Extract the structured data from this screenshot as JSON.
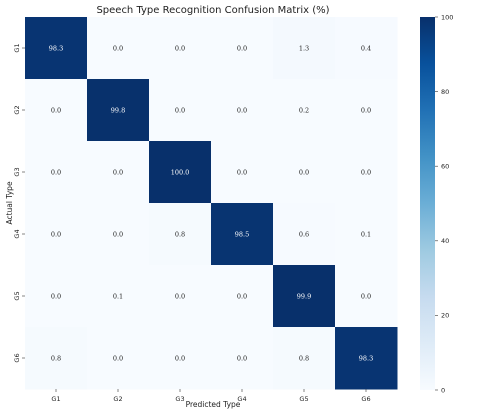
{
  "chart_data": {
    "type": "heatmap",
    "title": "Speech Type Recognition Confusion Matrix (%)",
    "xlabel": "Predicted Type",
    "ylabel": "Actual Type",
    "x_categories": [
      "G1",
      "G2",
      "G3",
      "G4",
      "G5",
      "G6"
    ],
    "y_categories": [
      "G1",
      "G2",
      "G3",
      "G4",
      "G5",
      "G6"
    ],
    "values": [
      [
        98.3,
        0.0,
        0.0,
        0.0,
        1.3,
        0.4
      ],
      [
        0.0,
        99.8,
        0.0,
        0.0,
        0.2,
        0.0
      ],
      [
        0.0,
        0.0,
        100.0,
        0.0,
        0.0,
        0.0
      ],
      [
        0.0,
        0.0,
        0.8,
        98.5,
        0.6,
        0.1
      ],
      [
        0.0,
        0.1,
        0.0,
        0.0,
        99.9,
        0.0
      ],
      [
        0.8,
        0.0,
        0.0,
        0.0,
        0.8,
        98.3
      ]
    ],
    "value_labels": [
      [
        "98.3",
        "0.0",
        "0.0",
        "0.0",
        "1.3",
        "0.4"
      ],
      [
        "0.0",
        "99.8",
        "0.0",
        "0.0",
        "0.2",
        "0.0"
      ],
      [
        "0.0",
        "0.0",
        "100.0",
        "0.0",
        "0.0",
        "0.0"
      ],
      [
        "0.0",
        "0.0",
        "0.8",
        "98.5",
        "0.6",
        "0.1"
      ],
      [
        "0.0",
        "0.1",
        "0.0",
        "0.0",
        "99.9",
        "0.0"
      ],
      [
        "0.8",
        "0.0",
        "0.0",
        "0.0",
        "0.8",
        "98.3"
      ]
    ],
    "colorbar": {
      "range": [
        0,
        100
      ],
      "ticks": [
        0,
        20,
        40,
        60,
        80,
        100
      ],
      "colormap": "Blues",
      "low_color": "#f7fbff",
      "high_color": "#08306b"
    },
    "grid": false
  }
}
